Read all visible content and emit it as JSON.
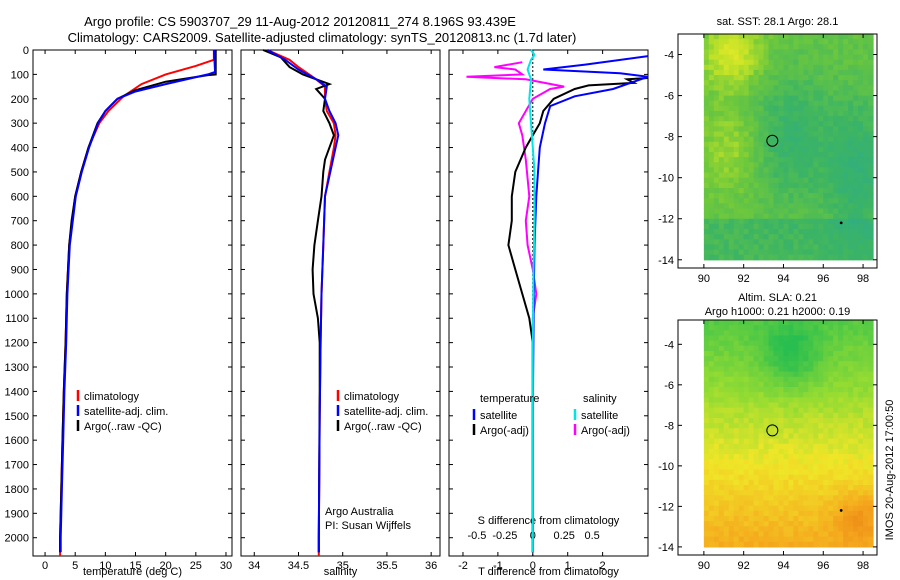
{
  "title_line1": "Argo profile: CS 5903707_29 11-Aug-2012 20120811_274 8.196S 93.439E",
  "title_line2": "Climatology: CARS2009. Satellite-adjusted climatology: synTS_20120813.nc (1.7d later)",
  "side_label": "IMOS 20-Aug-2012 17:00:50",
  "colors": {
    "climatology": "#ff0000",
    "satellite": "#0000ff",
    "argo": "#000000",
    "sal_satellite": "#00e5e5",
    "sal_argo": "#ff00ff"
  },
  "chart_data": [
    {
      "type": "line",
      "name": "temperature",
      "xlabel": "temperature (deg C)",
      "ylabel": "",
      "xlim": [
        -2,
        31
      ],
      "ylim": [
        2075,
        0
      ],
      "xticks": [
        0,
        5,
        10,
        15,
        20,
        25,
        30
      ],
      "yticks": [
        0,
        100,
        200,
        300,
        400,
        500,
        600,
        700,
        800,
        900,
        1000,
        1100,
        1200,
        1300,
        1400,
        1500,
        1600,
        1700,
        1800,
        1900,
        2000
      ],
      "legend": [
        "climatology",
        "satellite-adj. clim.",
        "Argo(..raw -QC)"
      ],
      "series": [
        {
          "key": "climatology",
          "values": [
            [
              28,
              0
            ],
            [
              28,
              40
            ],
            [
              25,
              65
            ],
            [
              20,
              100
            ],
            [
              16,
              140
            ],
            [
              13,
              190
            ],
            [
              10.5,
              250
            ],
            [
              9,
              300
            ],
            [
              7.2,
              400
            ],
            [
              6,
              500
            ],
            [
              5,
              600
            ],
            [
              4.5,
              700
            ],
            [
              4,
              800
            ],
            [
              3.8,
              900
            ],
            [
              3.6,
              1000
            ],
            [
              3.4,
              1200
            ],
            [
              3.1,
              1400
            ],
            [
              2.9,
              1600
            ],
            [
              2.7,
              1800
            ],
            [
              2.5,
              2000
            ],
            [
              2.5,
              2075
            ]
          ]
        },
        {
          "key": "satellite",
          "values": [
            [
              28,
              0
            ],
            [
              28.2,
              90
            ],
            [
              27,
              100
            ],
            [
              20,
              140
            ],
            [
              15,
              170
            ],
            [
              12,
              200
            ],
            [
              10,
              250
            ],
            [
              8.8,
              300
            ],
            [
              7.3,
              400
            ],
            [
              6.1,
              500
            ],
            [
              5.1,
              600
            ],
            [
              4.6,
              700
            ],
            [
              4.1,
              800
            ],
            [
              3.9,
              900
            ],
            [
              3.7,
              1000
            ],
            [
              3.5,
              1200
            ],
            [
              3.2,
              1400
            ],
            [
              3,
              1600
            ],
            [
              2.8,
              1800
            ],
            [
              2.6,
              2000
            ],
            [
              2.6,
              2060
            ]
          ]
        },
        {
          "key": "argo",
          "values": [
            [
              28.3,
              0
            ],
            [
              28.3,
              100
            ],
            [
              27,
              103
            ],
            [
              20,
              130
            ],
            [
              15,
              165
            ],
            [
              12,
              200
            ],
            [
              10,
              250
            ],
            [
              8.7,
              300
            ],
            [
              7.2,
              400
            ],
            [
              6,
              500
            ],
            [
              5,
              600
            ],
            [
              4.4,
              700
            ],
            [
              4,
              800
            ],
            [
              3.8,
              900
            ],
            [
              3.6,
              1000
            ],
            [
              3.4,
              1200
            ],
            [
              3.1,
              1400
            ],
            [
              2.9,
              1600
            ],
            [
              2.7,
              1800
            ],
            [
              2.5,
              2000
            ],
            [
              2.5,
              2060
            ]
          ]
        }
      ]
    },
    {
      "type": "line",
      "name": "salinity",
      "xlabel": "salinity",
      "ylabel": "",
      "xlim": [
        33.85,
        36.1
      ],
      "ylim": [
        2075,
        0
      ],
      "xticks": [
        34,
        34.5,
        35,
        35.5,
        36
      ],
      "legend": [
        "climatology",
        "satellite-adj. clim.",
        "Argo(..raw -QC)"
      ],
      "annotation": [
        "Argo Australia",
        "PI: Susan Wijffels"
      ],
      "series": [
        {
          "key": "climatology",
          "values": [
            [
              34.15,
              0
            ],
            [
              34.4,
              40
            ],
            [
              34.5,
              70
            ],
            [
              34.7,
              120
            ],
            [
              34.8,
              150
            ],
            [
              34.8,
              200
            ],
            [
              34.82,
              250
            ],
            [
              34.9,
              300
            ],
            [
              34.92,
              350
            ],
            [
              34.9,
              400
            ],
            [
              34.85,
              500
            ],
            [
              34.8,
              600
            ],
            [
              34.78,
              800
            ],
            [
              34.76,
              1000
            ],
            [
              34.75,
              1200
            ],
            [
              34.74,
              1500
            ],
            [
              34.73,
              2000
            ],
            [
              34.73,
              2075
            ]
          ]
        },
        {
          "key": "satellite",
          "values": [
            [
              34.15,
              0
            ],
            [
              34.35,
              40
            ],
            [
              34.5,
              80
            ],
            [
              34.7,
              120
            ],
            [
              34.82,
              150
            ],
            [
              34.8,
              200
            ],
            [
              34.85,
              250
            ],
            [
              34.92,
              300
            ],
            [
              34.95,
              350
            ],
            [
              34.92,
              400
            ],
            [
              34.86,
              500
            ],
            [
              34.8,
              600
            ],
            [
              34.78,
              800
            ],
            [
              34.76,
              1000
            ],
            [
              34.75,
              1200
            ],
            [
              34.74,
              1500
            ],
            [
              34.73,
              2000
            ],
            [
              34.73,
              2060
            ]
          ]
        },
        {
          "key": "argo",
          "values": [
            [
              34.1,
              0
            ],
            [
              34.3,
              30
            ],
            [
              34.4,
              70
            ],
            [
              34.55,
              100
            ],
            [
              34.7,
              120
            ],
            [
              34.85,
              140
            ],
            [
              34.7,
              160
            ],
            [
              34.8,
              200
            ],
            [
              34.78,
              250
            ],
            [
              34.85,
              300
            ],
            [
              34.9,
              350
            ],
            [
              34.8,
              450
            ],
            [
              34.78,
              500
            ],
            [
              34.76,
              600
            ],
            [
              34.72,
              700
            ],
            [
              34.68,
              800
            ],
            [
              34.66,
              900
            ],
            [
              34.67,
              1000
            ],
            [
              34.72,
              1100
            ],
            [
              34.74,
              1200
            ],
            [
              34.74,
              1400
            ],
            [
              34.73,
              2000
            ],
            [
              34.73,
              2060
            ]
          ]
        }
      ]
    },
    {
      "type": "line",
      "name": "differences",
      "xlabel": "T difference from climatology",
      "top_label": "S difference from climatology",
      "xlim": [
        -2.4,
        3.3
      ],
      "ylim": [
        2075,
        0
      ],
      "xticks": [
        -2,
        -1,
        0,
        1,
        2
      ],
      "sticks": [
        {
          "label": "-0.5",
          "t": -1.6
        },
        {
          "label": "-0.25",
          "t": -0.8
        },
        {
          "label": "0",
          "t": 0
        },
        {
          "label": "0.25",
          "t": 0.9
        },
        {
          "label": "0.5",
          "t": 1.7
        }
      ],
      "legend_titles": [
        "temperature",
        "salinity"
      ],
      "legend": [
        "satellite",
        "Argo(-adj)",
        "satellite",
        "Argo(-adj)"
      ],
      "series": [
        {
          "key": "satellite",
          "values": [
            [
              3.3,
              25
            ],
            [
              1.5,
              60
            ],
            [
              0.3,
              80
            ],
            [
              2.5,
              95
            ],
            [
              3.3,
              110
            ],
            [
              2.3,
              160
            ],
            [
              1.2,
              190
            ],
            [
              0.5,
              230
            ],
            [
              0.35,
              300
            ],
            [
              0.2,
              400
            ],
            [
              0.15,
              500
            ],
            [
              0.1,
              600
            ],
            [
              0.05,
              800
            ],
            [
              0.03,
              1000
            ],
            [
              0,
              1500
            ],
            [
              0,
              2060
            ]
          ]
        },
        {
          "key": "argo",
          "values": [
            [
              3.3,
              115
            ],
            [
              2.7,
              120
            ],
            [
              2.9,
              135
            ],
            [
              1.6,
              145
            ],
            [
              1.2,
              160
            ],
            [
              0.6,
              200
            ],
            [
              0.3,
              250
            ],
            [
              0.2,
              300
            ],
            [
              0,
              350
            ],
            [
              -0.2,
              400
            ],
            [
              -0.5,
              500
            ],
            [
              -0.6,
              600
            ],
            [
              -0.6,
              700
            ],
            [
              -0.7,
              800
            ],
            [
              -0.5,
              900
            ],
            [
              -0.3,
              1000
            ],
            [
              -0.1,
              1100
            ],
            [
              0,
              1200
            ],
            [
              0,
              1500
            ],
            [
              0,
              2060
            ]
          ]
        },
        {
          "key": "sal_satellite",
          "values": [
            [
              -0.05,
              0
            ],
            [
              0.05,
              20
            ],
            [
              -0.05,
              40
            ],
            [
              -0.15,
              80
            ],
            [
              -0.05,
              120
            ],
            [
              -0.1,
              200
            ],
            [
              -0.05,
              300
            ],
            [
              0,
              400
            ],
            [
              0.05,
              500
            ],
            [
              0.05,
              700
            ],
            [
              0.02,
              900
            ],
            [
              0,
              1200
            ],
            [
              0,
              2060
            ]
          ]
        },
        {
          "key": "sal_argo",
          "values": [
            [
              -0.3,
              50
            ],
            [
              -1.1,
              70
            ],
            [
              -0.5,
              80
            ],
            [
              -0.3,
              100
            ],
            [
              -1.9,
              110
            ],
            [
              -0.2,
              120
            ],
            [
              0.9,
              150
            ],
            [
              0.5,
              160
            ],
            [
              0,
              200
            ],
            [
              -0.4,
              300
            ],
            [
              -0.3,
              350
            ],
            [
              -0.2,
              450
            ],
            [
              -0.1,
              600
            ],
            [
              -0.2,
              700
            ],
            [
              -0.15,
              800
            ],
            [
              0,
              900
            ],
            [
              0.1,
              1000
            ],
            [
              0,
              1100
            ],
            [
              0,
              2060
            ]
          ]
        }
      ]
    }
  ],
  "maps": [
    {
      "title": [
        "sat. SST: 28.1  Argo: 28.1"
      ],
      "xticks": [
        90,
        92,
        94,
        96,
        98
      ],
      "yticks": [
        -4,
        -6,
        -8,
        -10,
        -12,
        -14
      ],
      "xlim": [
        88.7,
        98.7
      ],
      "ylim": [
        -3,
        -14.4
      ],
      "data_x": [
        90,
        98.5
      ],
      "data_y": [
        -3,
        -14
      ],
      "argo": [
        93.44,
        -8.2
      ],
      "dot": [
        96.9,
        -12.2
      ],
      "palette": "sst"
    },
    {
      "title": [
        "Altim. SLA: 0.21",
        "Argo h1000: 0.21 h2000: 0.19"
      ],
      "xticks": [
        90,
        92,
        94,
        96,
        98
      ],
      "yticks": [
        -4,
        -6,
        -8,
        -10,
        -12,
        -14
      ],
      "xlim": [
        88.7,
        98.7
      ],
      "ylim": [
        -2.8,
        -14.4
      ],
      "data_x": [
        90,
        98.5
      ],
      "data_y": [
        -2.8,
        -14
      ],
      "argo": [
        93.44,
        -8.25
      ],
      "dot": [
        96.9,
        -12.2
      ],
      "palette": "sla"
    }
  ]
}
